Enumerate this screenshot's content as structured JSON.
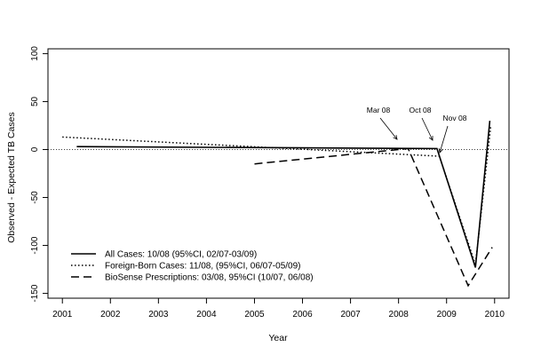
{
  "chart_data": {
    "type": "line",
    "xlabel": "Year",
    "ylabel": "Observed - Expected TB Cases",
    "xlim": [
      2000.7,
      2010.3
    ],
    "ylim": [
      -155,
      105
    ],
    "xticks": [
      "2001",
      "2002",
      "2003",
      "2004",
      "2005",
      "2006",
      "2007",
      "2008",
      "2009",
      "2010"
    ],
    "yticks": [
      "-150",
      "-100",
      "-50",
      "0",
      "50",
      "100"
    ],
    "reference_line": {
      "y": 0,
      "style": "dotted"
    },
    "legend_position": "bottom-left",
    "series": [
      {
        "name": "All Cases: 10/08 (95%CI, 02/07-03/09)",
        "line_style": "solid",
        "x": [
          2001.3,
          2008.8,
          2009.6,
          2009.9
        ],
        "y": [
          3,
          1,
          -123,
          30
        ]
      },
      {
        "name": "Foreign-Born Cases: 11/08, (95%CI, 06/07-05/09)",
        "line_style": "dotted",
        "x": [
          2001.0,
          2008.85,
          2009.6,
          2009.92
        ],
        "y": [
          13,
          -7,
          -120,
          25
        ]
      },
      {
        "name": "BioSense Prescriptions: 03/08, 95%CI (10/07, 06/08)",
        "line_style": "dashed",
        "x": [
          2005.0,
          2008.2,
          2009.45,
          2009.95
        ],
        "y": [
          -15,
          1,
          -142,
          -102
        ]
      }
    ],
    "annotations": [
      {
        "text": "Mar 08",
        "x": 2008.2
      },
      {
        "text": "Oct 08",
        "x": 2008.8
      },
      {
        "text": "Nov 08",
        "x": 2008.85
      }
    ]
  }
}
